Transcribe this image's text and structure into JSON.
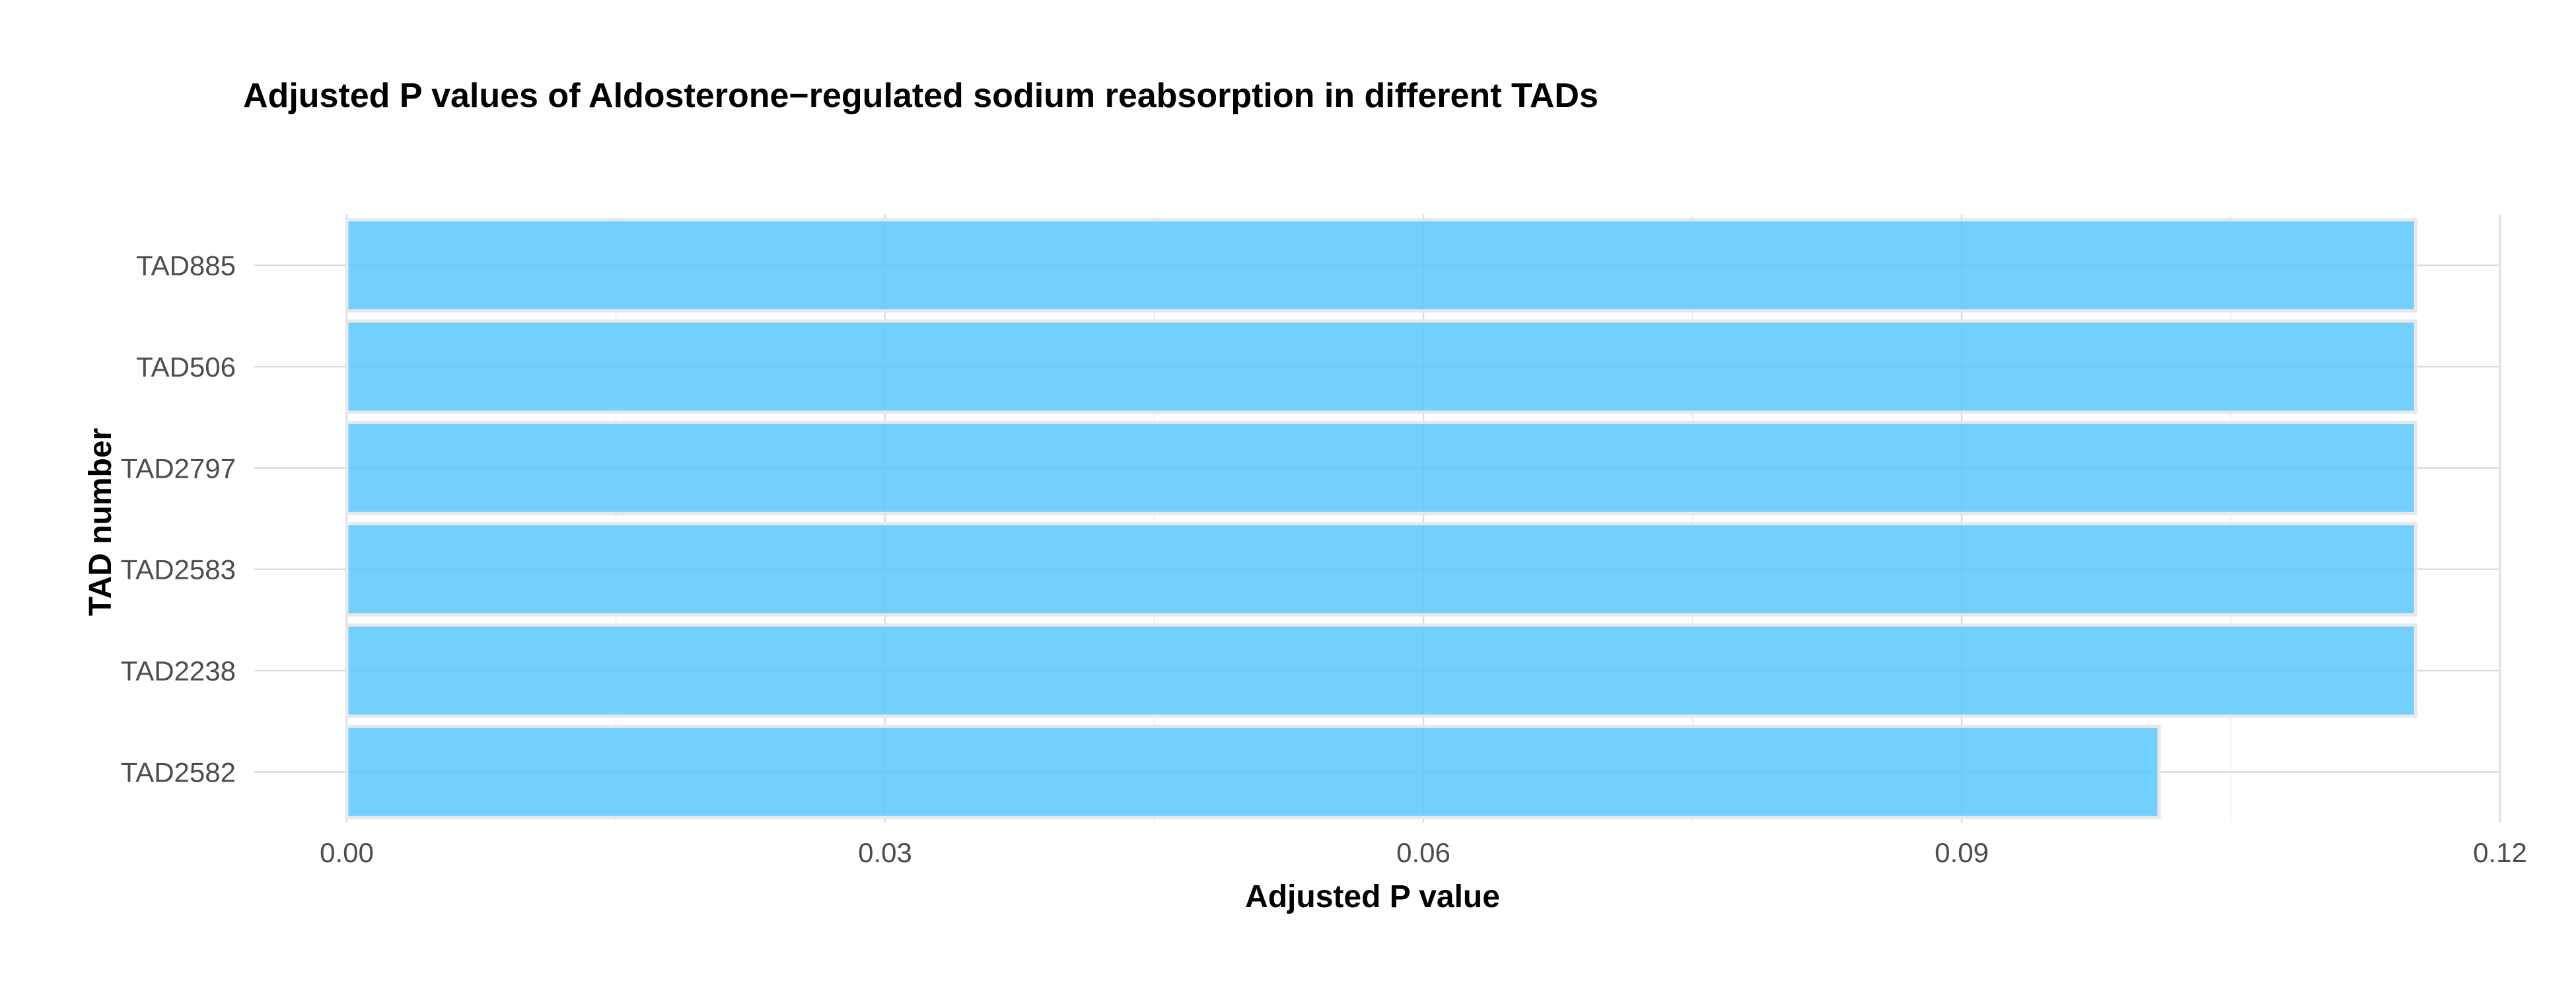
{
  "chart_data": {
    "type": "bar",
    "orientation": "horizontal",
    "title": "Adjusted P values of Aldosterone−regulated sodium reabsorption in different TADs",
    "xlabel": "Adjusted P value",
    "ylabel": "TAD number",
    "categories": [
      "TAD885",
      "TAD506",
      "TAD2797",
      "TAD2583",
      "TAD2238",
      "TAD2582"
    ],
    "values": [
      0.1153,
      0.1153,
      0.1153,
      0.1153,
      0.1153,
      0.101
    ],
    "xlim": [
      0,
      0.12
    ],
    "xticks": [
      0,
      0.03,
      0.06,
      0.09,
      0.12
    ],
    "xtick_labels": [
      "0.00",
      "0.03",
      "0.06",
      "0.09",
      "0.12"
    ],
    "grid": true,
    "legend": "none",
    "bar_color": "#5bc8fb"
  }
}
